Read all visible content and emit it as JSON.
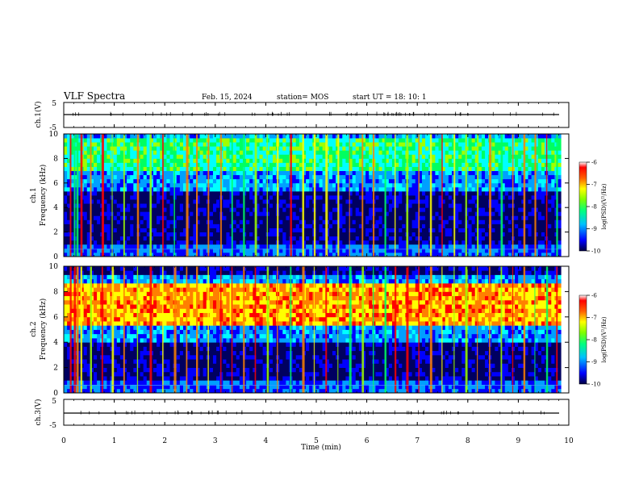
{
  "header": {
    "title": "VLF Spectra",
    "date": "Feb. 15, 2024",
    "station": "station= MOS",
    "start": "start  UT =   18: 10: 1"
  },
  "chart_data": [
    {
      "type": "line",
      "panel": "ch1-voltage",
      "ylabel": "ch.1(V)",
      "yticks": [
        "5",
        "-5"
      ],
      "ylim": [
        -5,
        5
      ],
      "baseline": -0.3
    },
    {
      "type": "heatmap",
      "panel": "ch1-spectrogram",
      "ylabel_line1": "ch.1",
      "ylabel_line2": "Frequency (kHz)",
      "yticks": [
        "0",
        "2",
        "4",
        "6",
        "8",
        "10"
      ],
      "ylim": [
        0,
        10
      ],
      "colorbar": {
        "label": "log(PSD)(V²/Hz)",
        "ticks": [
          "-6",
          "-7",
          "-8",
          "-9",
          "-10"
        ],
        "range": [
          -10,
          -6
        ]
      },
      "bright_bands_khz": [
        [
          7,
          9.5
        ]
      ],
      "sferic_times_min": [
        0.12,
        0.2,
        0.25,
        0.33,
        0.52,
        0.75,
        0.95,
        1.18,
        1.45,
        1.7,
        1.95,
        2.18,
        2.42,
        2.62,
        2.85,
        3.1,
        3.32,
        3.55,
        3.78,
        4.02,
        4.22,
        4.48,
        4.72,
        4.95,
        5.18,
        5.42,
        5.65,
        5.9,
        6.12,
        6.35,
        6.55,
        6.78,
        7.02,
        7.25,
        7.48,
        7.72,
        7.95,
        8.18,
        8.42,
        8.65,
        8.88,
        9.1,
        9.32,
        9.55,
        9.75
      ]
    },
    {
      "type": "heatmap",
      "panel": "ch2-spectrogram",
      "ylabel_line1": "ch.2",
      "ylabel_line2": "Frequency (kHz)",
      "yticks": [
        "0",
        "2",
        "4",
        "6",
        "8",
        "10"
      ],
      "ylim": [
        0,
        10
      ],
      "colorbar": {
        "label": "log(PSD)(V²/Hz)",
        "ticks": [
          "-6",
          "-7",
          "-8",
          "-9",
          "-10"
        ],
        "range": [
          -10,
          -6
        ]
      },
      "bright_bands_khz": [
        [
          5.5,
          8.5
        ]
      ],
      "sferic_times_min": [
        0.12,
        0.2,
        0.25,
        0.33,
        0.52,
        0.75,
        0.95,
        1.18,
        1.45,
        1.7,
        1.95,
        2.18,
        2.42,
        2.62,
        2.85,
        3.1,
        3.32,
        3.55,
        3.78,
        4.02,
        4.22,
        4.48,
        4.72,
        4.95,
        5.18,
        5.42,
        5.65,
        5.9,
        6.12,
        6.35,
        6.55,
        6.78,
        7.02,
        7.25,
        7.48,
        7.72,
        7.95,
        8.18,
        8.42,
        8.65,
        8.88,
        9.1,
        9.32,
        9.55,
        9.75
      ]
    },
    {
      "type": "line",
      "panel": "ch3-voltage",
      "ylabel": "ch.3(V)",
      "yticks": [
        "5",
        "-5"
      ],
      "ylim": [
        -5,
        5
      ],
      "baseline": -0.3
    }
  ],
  "xaxis": {
    "label": "Time  (min)",
    "ticks": [
      "0",
      "1",
      "2",
      "3",
      "4",
      "5",
      "6",
      "7",
      "8",
      "9",
      "10"
    ],
    "xlim": [
      0,
      10
    ],
    "data_extent": [
      0,
      9.85
    ]
  },
  "colors": {
    "scale": [
      "#000000",
      "#000060",
      "#0000ff",
      "#00a0ff",
      "#00ffff",
      "#00ff60",
      "#a0ff00",
      "#ffff00",
      "#ff8000",
      "#ff0000",
      "#ffffff"
    ]
  }
}
